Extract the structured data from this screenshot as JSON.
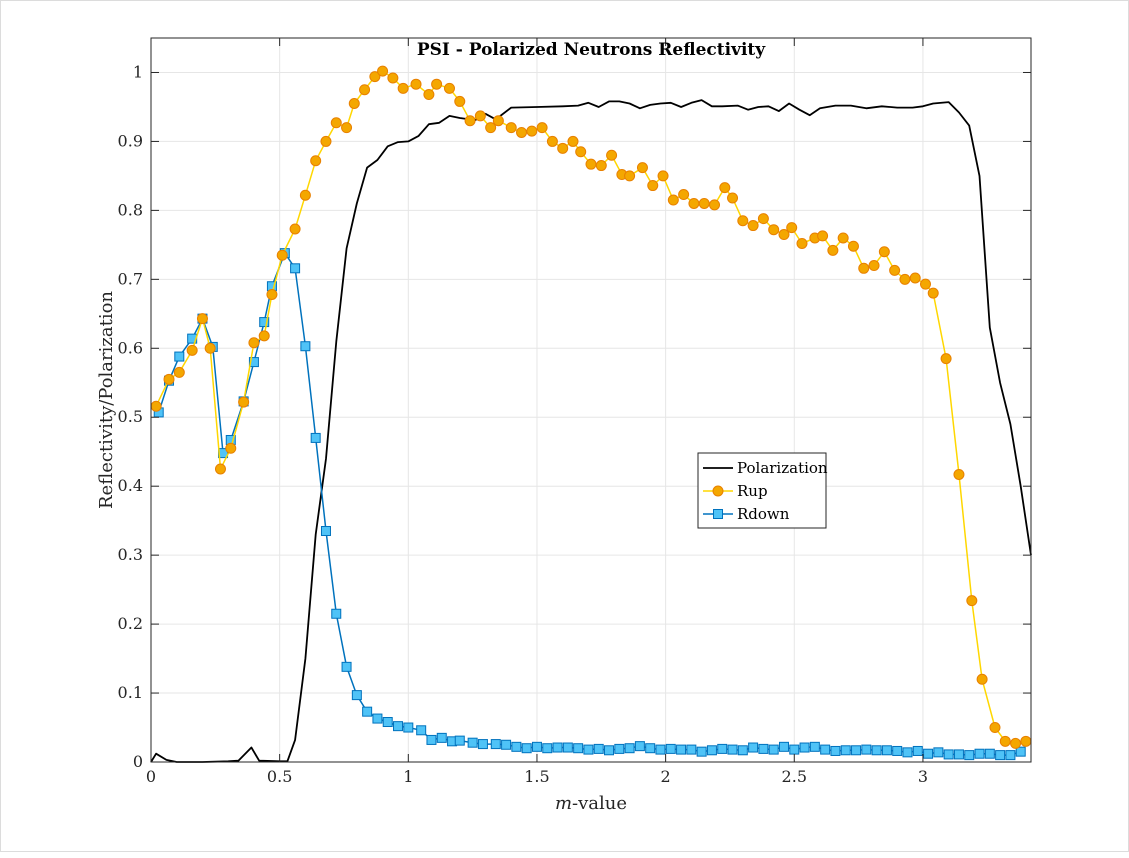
{
  "chart_data": {
    "type": "line",
    "title": "PSI - Polarized Neutrons Reflectivity",
    "xlabel_italic": "m",
    "xlabel_rest": "-value",
    "ylabel": "Reflectivity/Polarization",
    "xlim": [
      0,
      3.42
    ],
    "ylim": [
      0,
      1.05
    ],
    "xticks": [
      0,
      0.5,
      1,
      1.5,
      2,
      2.5,
      3
    ],
    "xtick_labels": [
      "0",
      "0.5",
      "1",
      "1.5",
      "2",
      "2.5",
      "3"
    ],
    "yticks": [
      0,
      0.1,
      0.2,
      0.3,
      0.4,
      0.5,
      0.6,
      0.7,
      0.8,
      0.9,
      1
    ],
    "ytick_labels": [
      "0",
      "0.1",
      "0.2",
      "0.3",
      "0.4",
      "0.5",
      "0.6",
      "0.7",
      "0.8",
      "0.9",
      "1"
    ],
    "grid": true,
    "legend_position": "center-right",
    "series": [
      {
        "name": "Polarization",
        "color": "#000000",
        "marker": "none",
        "points": [
          [
            0,
            0
          ],
          [
            0.02,
            0.012
          ],
          [
            0.06,
            0.003
          ],
          [
            0.1,
            0
          ],
          [
            0.2,
            0
          ],
          [
            0.3,
            0.001
          ],
          [
            0.34,
            0.002
          ],
          [
            0.39,
            0.021
          ],
          [
            0.42,
            0.002
          ],
          [
            0.5,
            0.001
          ],
          [
            0.53,
            0.001
          ],
          [
            0.56,
            0.032
          ],
          [
            0.6,
            0.15
          ],
          [
            0.64,
            0.33
          ],
          [
            0.68,
            0.44
          ],
          [
            0.72,
            0.61
          ],
          [
            0.76,
            0.745
          ],
          [
            0.8,
            0.81
          ],
          [
            0.84,
            0.862
          ],
          [
            0.88,
            0.873
          ],
          [
            0.92,
            0.893
          ],
          [
            0.96,
            0.899
          ],
          [
            1.0,
            0.9
          ],
          [
            1.04,
            0.908
          ],
          [
            1.08,
            0.925
          ],
          [
            1.12,
            0.927
          ],
          [
            1.16,
            0.937
          ],
          [
            1.2,
            0.934
          ],
          [
            1.26,
            0.931
          ],
          [
            1.3,
            0.94
          ],
          [
            1.34,
            0.932
          ],
          [
            1.4,
            0.949
          ],
          [
            1.5,
            0.95
          ],
          [
            1.6,
            0.951
          ],
          [
            1.66,
            0.952
          ],
          [
            1.7,
            0.956
          ],
          [
            1.74,
            0.95
          ],
          [
            1.78,
            0.958
          ],
          [
            1.82,
            0.958
          ],
          [
            1.86,
            0.955
          ],
          [
            1.9,
            0.948
          ],
          [
            1.94,
            0.953
          ],
          [
            1.98,
            0.955
          ],
          [
            2.02,
            0.956
          ],
          [
            2.06,
            0.95
          ],
          [
            2.1,
            0.956
          ],
          [
            2.14,
            0.96
          ],
          [
            2.18,
            0.951
          ],
          [
            2.22,
            0.951
          ],
          [
            2.28,
            0.952
          ],
          [
            2.32,
            0.946
          ],
          [
            2.36,
            0.95
          ],
          [
            2.4,
            0.951
          ],
          [
            2.44,
            0.944
          ],
          [
            2.48,
            0.955
          ],
          [
            2.52,
            0.946
          ],
          [
            2.56,
            0.938
          ],
          [
            2.6,
            0.948
          ],
          [
            2.66,
            0.952
          ],
          [
            2.72,
            0.952
          ],
          [
            2.78,
            0.948
          ],
          [
            2.84,
            0.951
          ],
          [
            2.9,
            0.949
          ],
          [
            2.96,
            0.949
          ],
          [
            3.0,
            0.951
          ],
          [
            3.04,
            0.955
          ],
          [
            3.1,
            0.957
          ],
          [
            3.14,
            0.942
          ],
          [
            3.18,
            0.923
          ],
          [
            3.22,
            0.85
          ],
          [
            3.26,
            0.63
          ],
          [
            3.3,
            0.55
          ],
          [
            3.34,
            0.49
          ],
          [
            3.38,
            0.4
          ],
          [
            3.42,
            0.3
          ]
        ]
      },
      {
        "name": "Rup",
        "color": "#FFD700",
        "marker": "circle",
        "markerFill": "#F4A700",
        "markerEdge": "#E88000",
        "points": [
          [
            0.02,
            0.516
          ],
          [
            0.07,
            0.555
          ],
          [
            0.11,
            0.565
          ],
          [
            0.16,
            0.597
          ],
          [
            0.2,
            0.643
          ],
          [
            0.23,
            0.6
          ],
          [
            0.27,
            0.425
          ],
          [
            0.31,
            0.455
          ],
          [
            0.36,
            0.522
          ],
          [
            0.4,
            0.608
          ],
          [
            0.44,
            0.618
          ],
          [
            0.47,
            0.678
          ],
          [
            0.51,
            0.735
          ],
          [
            0.56,
            0.773
          ],
          [
            0.6,
            0.822
          ],
          [
            0.64,
            0.872
          ],
          [
            0.68,
            0.9
          ],
          [
            0.72,
            0.927
          ],
          [
            0.76,
            0.92
          ],
          [
            0.79,
            0.955
          ],
          [
            0.83,
            0.975
          ],
          [
            0.87,
            0.994
          ],
          [
            0.9,
            1.002
          ],
          [
            0.94,
            0.992
          ],
          [
            0.98,
            0.977
          ],
          [
            1.03,
            0.983
          ],
          [
            1.08,
            0.968
          ],
          [
            1.11,
            0.983
          ],
          [
            1.16,
            0.977
          ],
          [
            1.2,
            0.958
          ],
          [
            1.24,
            0.93
          ],
          [
            1.28,
            0.937
          ],
          [
            1.32,
            0.92
          ],
          [
            1.35,
            0.93
          ],
          [
            1.4,
            0.92
          ],
          [
            1.44,
            0.913
          ],
          [
            1.48,
            0.915
          ],
          [
            1.52,
            0.92
          ],
          [
            1.56,
            0.9
          ],
          [
            1.6,
            0.89
          ],
          [
            1.64,
            0.9
          ],
          [
            1.67,
            0.885
          ],
          [
            1.71,
            0.867
          ],
          [
            1.75,
            0.865
          ],
          [
            1.79,
            0.88
          ],
          [
            1.83,
            0.852
          ],
          [
            1.86,
            0.85
          ],
          [
            1.91,
            0.862
          ],
          [
            1.95,
            0.836
          ],
          [
            1.99,
            0.85
          ],
          [
            2.03,
            0.815
          ],
          [
            2.07,
            0.823
          ],
          [
            2.11,
            0.81
          ],
          [
            2.15,
            0.81
          ],
          [
            2.19,
            0.808
          ],
          [
            2.23,
            0.833
          ],
          [
            2.26,
            0.818
          ],
          [
            2.3,
            0.785
          ],
          [
            2.34,
            0.778
          ],
          [
            2.38,
            0.788
          ],
          [
            2.42,
            0.772
          ],
          [
            2.46,
            0.765
          ],
          [
            2.49,
            0.775
          ],
          [
            2.53,
            0.752
          ],
          [
            2.58,
            0.76
          ],
          [
            2.61,
            0.763
          ],
          [
            2.65,
            0.742
          ],
          [
            2.69,
            0.76
          ],
          [
            2.73,
            0.748
          ],
          [
            2.77,
            0.716
          ],
          [
            2.81,
            0.72
          ],
          [
            2.85,
            0.74
          ],
          [
            2.89,
            0.713
          ],
          [
            2.93,
            0.7
          ],
          [
            2.97,
            0.702
          ],
          [
            3.01,
            0.693
          ],
          [
            3.04,
            0.68
          ],
          [
            3.09,
            0.585
          ],
          [
            3.14,
            0.417
          ],
          [
            3.19,
            0.234
          ],
          [
            3.23,
            0.12
          ],
          [
            3.28,
            0.05
          ],
          [
            3.32,
            0.03
          ],
          [
            3.36,
            0.027
          ],
          [
            3.4,
            0.03
          ]
        ]
      },
      {
        "name": "Rdown",
        "color": "#0072BD",
        "marker": "square",
        "markerFill": "#4FC3F7",
        "markerEdge": "#0072BD",
        "points": [
          [
            0.03,
            0.507
          ],
          [
            0.07,
            0.553
          ],
          [
            0.11,
            0.588
          ],
          [
            0.16,
            0.614
          ],
          [
            0.2,
            0.643
          ],
          [
            0.24,
            0.602
          ],
          [
            0.28,
            0.448
          ],
          [
            0.31,
            0.467
          ],
          [
            0.36,
            0.523
          ],
          [
            0.4,
            0.58
          ],
          [
            0.44,
            0.638
          ],
          [
            0.47,
            0.69
          ],
          [
            0.52,
            0.738
          ],
          [
            0.56,
            0.716
          ],
          [
            0.6,
            0.603
          ],
          [
            0.64,
            0.47
          ],
          [
            0.68,
            0.335
          ],
          [
            0.72,
            0.215
          ],
          [
            0.76,
            0.138
          ],
          [
            0.8,
            0.097
          ],
          [
            0.84,
            0.073
          ],
          [
            0.88,
            0.063
          ],
          [
            0.92,
            0.058
          ],
          [
            0.96,
            0.052
          ],
          [
            1.0,
            0.05
          ],
          [
            1.05,
            0.046
          ],
          [
            1.09,
            0.032
          ],
          [
            1.13,
            0.035
          ],
          [
            1.17,
            0.03
          ],
          [
            1.2,
            0.031
          ],
          [
            1.25,
            0.028
          ],
          [
            1.29,
            0.026
          ],
          [
            1.34,
            0.026
          ],
          [
            1.38,
            0.025
          ],
          [
            1.42,
            0.022
          ],
          [
            1.46,
            0.02
          ],
          [
            1.5,
            0.022
          ],
          [
            1.54,
            0.02
          ],
          [
            1.58,
            0.021
          ],
          [
            1.62,
            0.021
          ],
          [
            1.66,
            0.02
          ],
          [
            1.7,
            0.018
          ],
          [
            1.74,
            0.019
          ],
          [
            1.78,
            0.017
          ],
          [
            1.82,
            0.019
          ],
          [
            1.86,
            0.02
          ],
          [
            1.9,
            0.023
          ],
          [
            1.94,
            0.02
          ],
          [
            1.98,
            0.018
          ],
          [
            2.02,
            0.019
          ],
          [
            2.06,
            0.018
          ],
          [
            2.1,
            0.018
          ],
          [
            2.14,
            0.015
          ],
          [
            2.18,
            0.017
          ],
          [
            2.22,
            0.019
          ],
          [
            2.26,
            0.018
          ],
          [
            2.3,
            0.017
          ],
          [
            2.34,
            0.021
          ],
          [
            2.38,
            0.019
          ],
          [
            2.42,
            0.018
          ],
          [
            2.46,
            0.022
          ],
          [
            2.5,
            0.018
          ],
          [
            2.54,
            0.021
          ],
          [
            2.58,
            0.022
          ],
          [
            2.62,
            0.018
          ],
          [
            2.66,
            0.016
          ],
          [
            2.7,
            0.017
          ],
          [
            2.74,
            0.017
          ],
          [
            2.78,
            0.018
          ],
          [
            2.82,
            0.017
          ],
          [
            2.86,
            0.017
          ],
          [
            2.9,
            0.016
          ],
          [
            2.94,
            0.014
          ],
          [
            2.98,
            0.016
          ],
          [
            3.02,
            0.012
          ],
          [
            3.06,
            0.014
          ],
          [
            3.1,
            0.011
          ],
          [
            3.14,
            0.011
          ],
          [
            3.18,
            0.01
          ],
          [
            3.22,
            0.012
          ],
          [
            3.26,
            0.012
          ],
          [
            3.3,
            0.01
          ],
          [
            3.34,
            0.01
          ],
          [
            3.38,
            0.015
          ]
        ]
      }
    ]
  }
}
